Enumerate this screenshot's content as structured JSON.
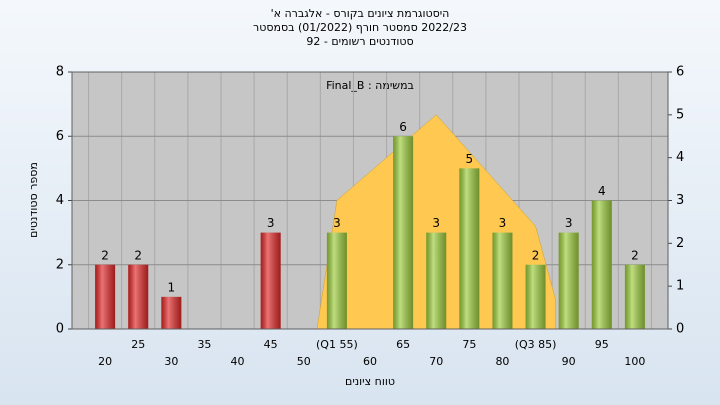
{
  "chart_data": {
    "type": "bar",
    "title": [
      "היסטוגרמת ציונים בקורס - אלגברה א'",
      "2022/23 סמסטר חורף (01/2022) בסמסטר",
      "סטודנטים רשומים - 92"
    ],
    "annotation": "במשימה : Final_B",
    "x_label": "טווח ציונים",
    "y_label": "מספר סטודנטים",
    "categories": [
      "20",
      "25",
      "30",
      "35",
      "40",
      "45",
      "50",
      "(Q1 55)",
      "60",
      "65",
      "70",
      "75",
      "80",
      "(Q3 85)",
      "90",
      "95",
      "100"
    ],
    "values": [
      2,
      2,
      1,
      0,
      0,
      3,
      0,
      3,
      0,
      6,
      3,
      5,
      3,
      2,
      3,
      4,
      2
    ],
    "colors": [
      "#e02828",
      "#e02828",
      "#e02828",
      "#e02828",
      "#e02828",
      "#e02828",
      "#e02828",
      "#9ccc3c",
      "#9ccc3c",
      "#9ccc3c",
      "#9ccc3c",
      "#9ccc3c",
      "#9ccc3c",
      "#9ccc3c",
      "#9ccc3c",
      "#9ccc3c",
      "#9ccc3c"
    ],
    "ylim": [
      0,
      8
    ],
    "yticks": [
      0,
      2,
      4,
      6,
      8
    ],
    "y2lim": [
      0,
      6
    ],
    "y2ticks": [
      0,
      1,
      2,
      3,
      4,
      5,
      6
    ],
    "xlim": [
      15,
      105
    ],
    "area": {
      "type": "area",
      "axis": "y2",
      "color": "#ffc850",
      "x": [
        52,
        55,
        70,
        85,
        88
      ],
      "values": [
        0,
        3,
        5,
        2.4,
        0.7
      ]
    },
    "grid": true
  }
}
